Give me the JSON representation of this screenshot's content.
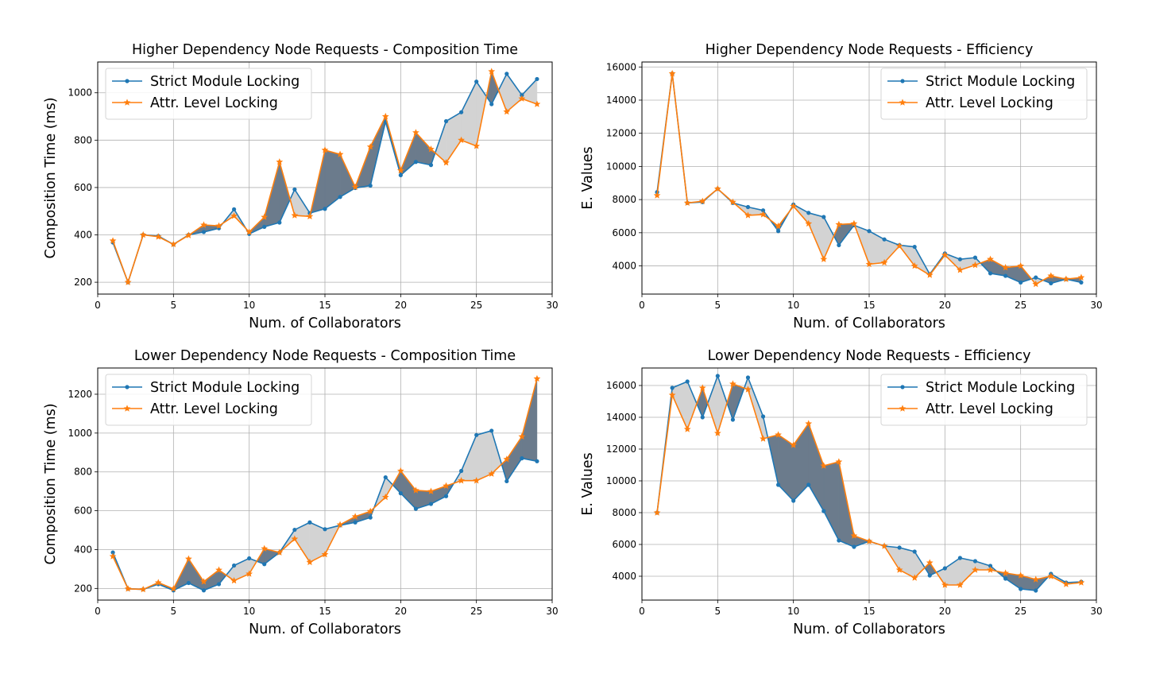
{
  "chart_data": [
    {
      "type": "line",
      "title": "Higher Dependency Node Requests - Composition Time",
      "xlabel": "Num. of Collaborators",
      "ylabel": "Composition Time (ms)",
      "xlim": [
        0,
        30
      ],
      "ylim": [
        150,
        1130
      ],
      "xticks": [
        0,
        5,
        10,
        15,
        20,
        25,
        30
      ],
      "yticks": [
        200,
        400,
        600,
        800,
        1000
      ],
      "grid": true,
      "legend_position": "upper-left",
      "fill_between": true,
      "x": [
        1,
        2,
        3,
        4,
        5,
        6,
        7,
        8,
        9,
        10,
        11,
        12,
        13,
        14,
        15,
        16,
        17,
        18,
        19,
        20,
        21,
        22,
        23,
        24,
        25,
        26,
        27,
        28,
        29
      ],
      "series": [
        {
          "name": "Strict Module Locking",
          "color": "#1f77b4",
          "marker": "circle",
          "values": [
            368,
            200,
            400,
            395,
            360,
            400,
            412,
            428,
            508,
            404,
            434,
            452,
            592,
            492,
            510,
            560,
            598,
            608,
            878,
            652,
            708,
            695,
            880,
            918,
            1047,
            952,
            1080,
            990,
            1058
          ]
        },
        {
          "name": "Attr. Level Locking",
          "color": "#ff7f0e",
          "marker": "star",
          "values": [
            375,
            200,
            400,
            392,
            360,
            398,
            442,
            438,
            480,
            412,
            475,
            708,
            482,
            478,
            758,
            740,
            602,
            772,
            900,
            672,
            832,
            762,
            705,
            800,
            775,
            1090,
            920,
            975,
            952
          ]
        }
      ]
    },
    {
      "type": "line",
      "title": "Higher Dependency Node Requests - Efficiency",
      "xlabel": "Num. of Collaborators",
      "ylabel": "E. Values",
      "xlim": [
        0,
        30
      ],
      "ylim": [
        2300,
        16300
      ],
      "xticks": [
        0,
        5,
        10,
        15,
        20,
        25,
        30
      ],
      "yticks": [
        4000,
        6000,
        8000,
        10000,
        12000,
        14000,
        16000
      ],
      "grid": true,
      "legend_position": "upper-right",
      "fill_between": true,
      "x": [
        1,
        2,
        3,
        4,
        5,
        6,
        7,
        8,
        9,
        10,
        11,
        12,
        13,
        14,
        15,
        16,
        17,
        18,
        19,
        20,
        21,
        22,
        23,
        24,
        25,
        26,
        27,
        28,
        29
      ],
      "series": [
        {
          "name": "Strict Module Locking",
          "color": "#1f77b4",
          "marker": "circle",
          "values": [
            8450,
            15600,
            7800,
            7850,
            8650,
            7800,
            7550,
            7350,
            6100,
            7700,
            7200,
            6950,
            5250,
            6450,
            6100,
            5600,
            5250,
            5150,
            3500,
            4750,
            4400,
            4500,
            3550,
            3400,
            3000,
            3300,
            2950,
            3200,
            3000
          ]
        },
        {
          "name": "Attr. Level Locking",
          "color": "#ff7f0e",
          "marker": "star",
          "values": [
            8250,
            15600,
            7800,
            7900,
            8650,
            7850,
            7050,
            7100,
            6400,
            7600,
            6550,
            4400,
            6500,
            6550,
            4100,
            4200,
            5200,
            4000,
            3450,
            4650,
            3750,
            4050,
            4400,
            3900,
            4000,
            2900,
            3400,
            3200,
            3300
          ]
        }
      ]
    },
    {
      "type": "line",
      "title": "Lower Dependency Node Requests - Composition Time",
      "xlabel": "Num. of Collaborators",
      "ylabel": "Composition Time (ms)",
      "xlim": [
        0,
        30
      ],
      "ylim": [
        140,
        1335
      ],
      "xticks": [
        0,
        5,
        10,
        15,
        20,
        25,
        30
      ],
      "yticks": [
        200,
        400,
        600,
        800,
        1000,
        1200
      ],
      "grid": true,
      "legend_position": "upper-left",
      "fill_between": true,
      "x": [
        1,
        2,
        3,
        4,
        5,
        6,
        7,
        8,
        9,
        10,
        11,
        12,
        13,
        14,
        15,
        16,
        17,
        18,
        19,
        20,
        21,
        22,
        23,
        24,
        25,
        26,
        27,
        28,
        29
      ],
      "series": [
        {
          "name": "Strict Module Locking",
          "color": "#1f77b4",
          "marker": "circle",
          "values": [
            385,
            198,
            195,
            222,
            190,
            228,
            190,
            222,
            318,
            355,
            325,
            385,
            502,
            540,
            505,
            525,
            540,
            565,
            772,
            690,
            610,
            635,
            675,
            805,
            990,
            1012,
            752,
            870,
            855
          ]
        },
        {
          "name": "Attr. Level Locking",
          "color": "#ff7f0e",
          "marker": "star",
          "values": [
            365,
            198,
            195,
            230,
            198,
            352,
            235,
            295,
            240,
            275,
            405,
            385,
            455,
            335,
            375,
            528,
            570,
            597,
            670,
            805,
            705,
            700,
            728,
            755,
            755,
            790,
            865,
            982,
            1280
          ]
        }
      ]
    },
    {
      "type": "line",
      "title": "Lower Dependency Node Requests - Efficiency",
      "xlabel": "Num. of Collaborators",
      "ylabel": "E. Values",
      "xlim": [
        0,
        30
      ],
      "ylim": [
        2500,
        17100
      ],
      "xticks": [
        0,
        5,
        10,
        15,
        20,
        25,
        30
      ],
      "yticks": [
        4000,
        6000,
        8000,
        10000,
        12000,
        14000,
        16000
      ],
      "grid": true,
      "legend_position": "upper-right",
      "fill_between": true,
      "x": [
        1,
        2,
        3,
        4,
        5,
        6,
        7,
        8,
        9,
        10,
        11,
        12,
        13,
        14,
        15,
        16,
        17,
        18,
        19,
        20,
        21,
        22,
        23,
        24,
        25,
        26,
        27,
        28,
        29
      ],
      "series": [
        {
          "name": "Strict Module Locking",
          "color": "#1f77b4",
          "marker": "circle",
          "values": [
            8000,
            15850,
            16250,
            14000,
            16600,
            13850,
            16500,
            14050,
            9750,
            8750,
            9750,
            8100,
            6250,
            5850,
            6200,
            5900,
            5800,
            5550,
            4050,
            4500,
            5150,
            4950,
            4650,
            3850,
            3200,
            3100,
            4150,
            3600,
            3650
          ]
        },
        {
          "name": "Attr. Level Locking",
          "color": "#ff7f0e",
          "marker": "star",
          "values": [
            8000,
            15400,
            13250,
            15850,
            13000,
            16100,
            15750,
            12650,
            12900,
            12250,
            13600,
            10950,
            11200,
            6550,
            6200,
            5900,
            4400,
            3900,
            4850,
            3450,
            3450,
            4400,
            4400,
            4200,
            4050,
            3800,
            4000,
            3500,
            3600
          ]
        }
      ]
    }
  ]
}
